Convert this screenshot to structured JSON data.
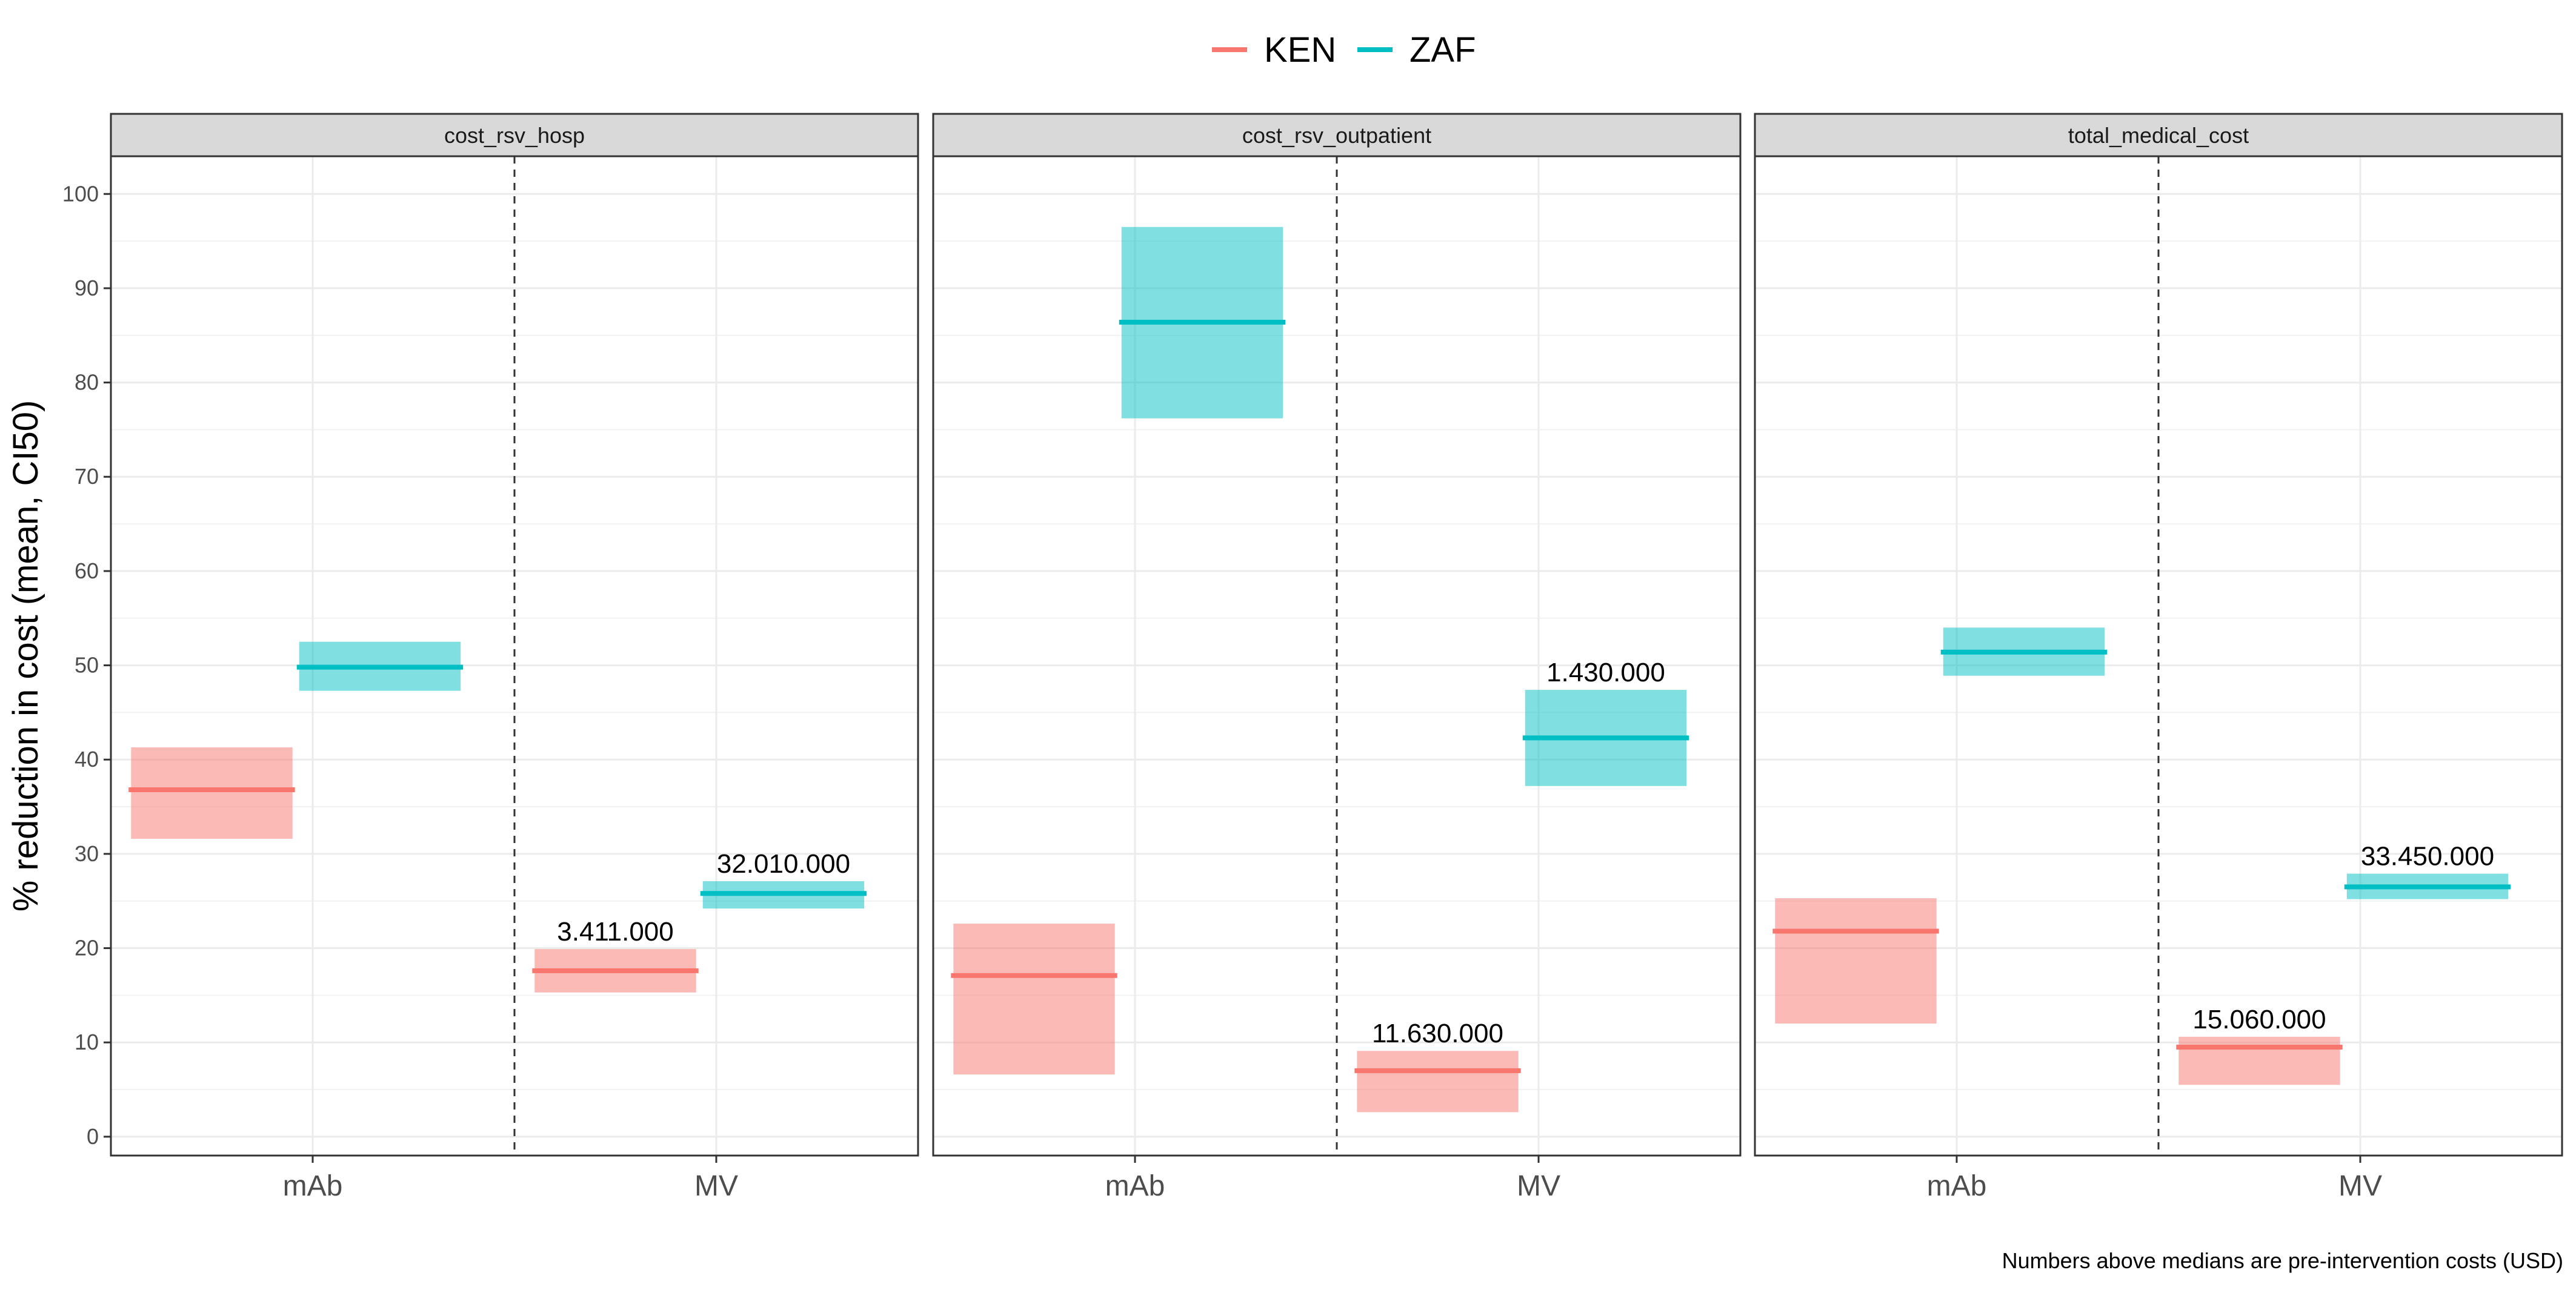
{
  "chart_data": {
    "type": "crossbar",
    "ylabel": "% reduction in cost (mean, CI50)",
    "xlabel": "",
    "ylim": [
      -2,
      104
    ],
    "y_ticks": [
      0,
      10,
      20,
      30,
      40,
      50,
      60,
      70,
      80,
      90,
      100
    ],
    "grid": true,
    "legend_position": "top",
    "categories": [
      "mAb",
      "MV"
    ],
    "series": [
      {
        "name": "KEN",
        "color": "#F8766D"
      },
      {
        "name": "ZAF",
        "color": "#00BFC4"
      }
    ],
    "panels": [
      {
        "title": "cost_rsv_hosp",
        "values": {
          "mAb": {
            "KEN": {
              "mean": 36.8,
              "low": 31.6,
              "high": 41.3
            },
            "ZAF": {
              "mean": 49.8,
              "low": 47.3,
              "high": 52.5
            }
          },
          "MV": {
            "KEN": {
              "mean": 17.6,
              "low": 15.3,
              "high": 19.9,
              "label": "3.411.000"
            },
            "ZAF": {
              "mean": 25.8,
              "low": 24.2,
              "high": 27.1,
              "label": "32.010.000"
            }
          }
        }
      },
      {
        "title": "cost_rsv_outpatient",
        "values": {
          "mAb": {
            "KEN": {
              "mean": 17.1,
              "low": 6.6,
              "high": 22.6
            },
            "ZAF": {
              "mean": 86.4,
              "low": 76.2,
              "high": 96.5
            }
          },
          "MV": {
            "KEN": {
              "mean": 7.0,
              "low": 2.6,
              "high": 9.1,
              "label": "11.630.000"
            },
            "ZAF": {
              "mean": 42.3,
              "low": 37.2,
              "high": 47.4,
              "label": "1.430.000"
            }
          }
        }
      },
      {
        "title": "total_medical_cost",
        "values": {
          "mAb": {
            "KEN": {
              "mean": 21.8,
              "low": 12.0,
              "high": 25.3
            },
            "ZAF": {
              "mean": 51.4,
              "low": 48.9,
              "high": 54.0
            }
          },
          "MV": {
            "KEN": {
              "mean": 9.5,
              "low": 5.5,
              "high": 10.6,
              "label": "15.060.000"
            },
            "ZAF": {
              "mean": 26.5,
              "low": 25.2,
              "high": 27.9,
              "label": "33.450.000"
            }
          }
        }
      }
    ],
    "caption": "Numbers above medians are pre-intervention costs (USD)"
  }
}
